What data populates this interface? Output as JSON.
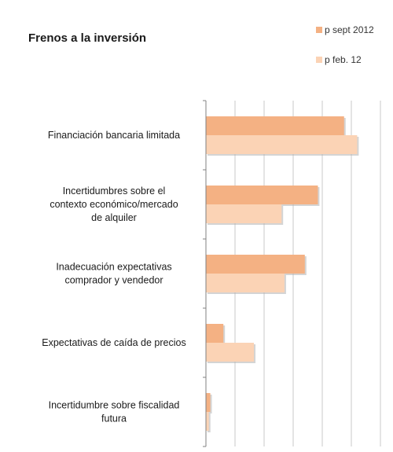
{
  "chart_data": {
    "type": "bar",
    "orientation": "horizontal",
    "title": "Frenos a la inversión",
    "categories": [
      [
        "Financiación bancaria limitada"
      ],
      [
        "Incertidumbres sobre el",
        "contexto económico/mercado",
        "de alquiler"
      ],
      [
        "Inadecuación expectativas",
        "comprador y vendedor"
      ],
      [
        "Expectativas de caída de precios"
      ],
      [
        "Incertidumbre sobre fiscalidad",
        "futura"
      ]
    ],
    "series": [
      {
        "name": "p sept 2012",
        "color": "#f4b183",
        "values": [
          95,
          77,
          68,
          12,
          3
        ]
      },
      {
        "name": "p feb. 12",
        "color": "#fbd3b5",
        "values": [
          104,
          52,
          54,
          33,
          2
        ]
      }
    ],
    "xlim": [
      0,
      120
    ],
    "grid": true,
    "legend": "top-right"
  }
}
